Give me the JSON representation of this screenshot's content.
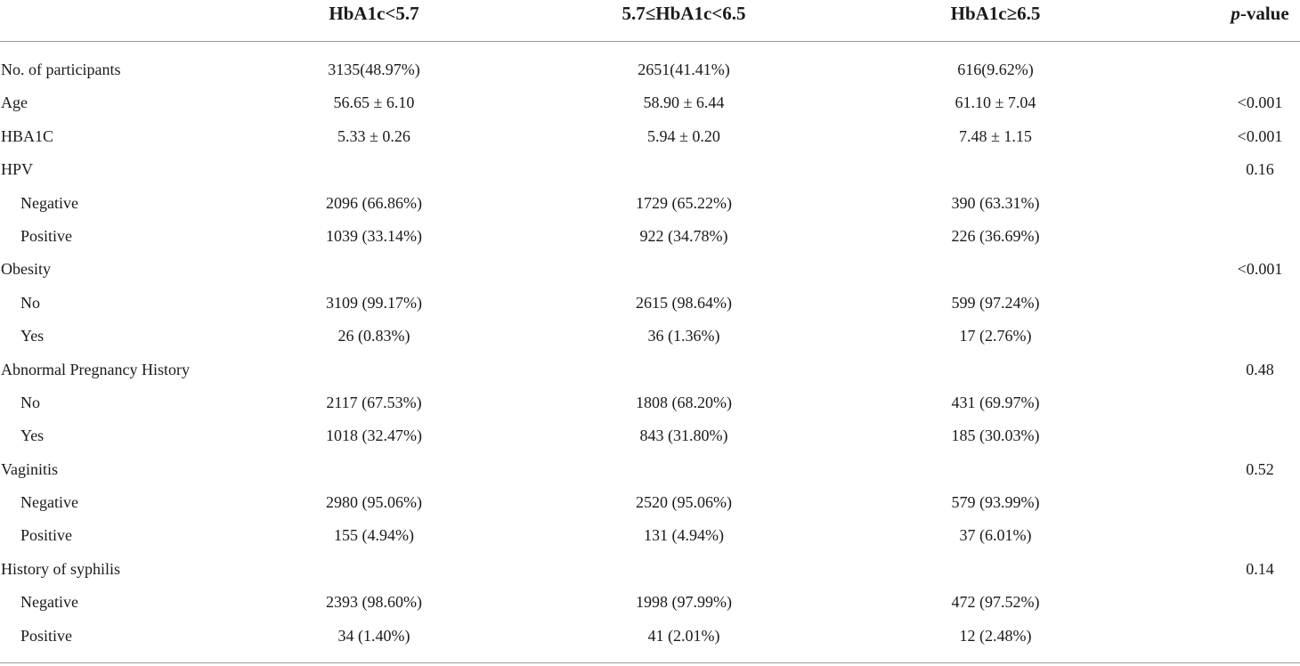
{
  "header": {
    "col_a": "HbA1c<5.7",
    "col_b": "5.7≤HbA1c<6.5",
    "col_c": "HbA1c≥6.5",
    "col_p_italic": "p",
    "col_p_rest": "-value"
  },
  "rows": [
    {
      "label": "No. of participants",
      "indent": false,
      "a": "3135(48.97%)",
      "b": "2651(41.41%)",
      "c": "616(9.62%)",
      "p": ""
    },
    {
      "label": "Age",
      "indent": false,
      "a": "56.65 ± 6.10",
      "b": "58.90 ± 6.44",
      "c": "61.10 ± 7.04",
      "p": "<0.001"
    },
    {
      "label": "HBA1C",
      "indent": false,
      "a": "5.33 ± 0.26",
      "b": "5.94 ± 0.20",
      "c": "7.48 ± 1.15",
      "p": "<0.001"
    },
    {
      "label": "HPV",
      "indent": false,
      "a": "",
      "b": "",
      "c": "",
      "p": "0.16"
    },
    {
      "label": "Negative",
      "indent": true,
      "a": "2096 (66.86%)",
      "b": "1729 (65.22%)",
      "c": "390 (63.31%)",
      "p": ""
    },
    {
      "label": "Positive",
      "indent": true,
      "a": "1039 (33.14%)",
      "b": "922 (34.78%)",
      "c": "226 (36.69%)",
      "p": ""
    },
    {
      "label": "Obesity",
      "indent": false,
      "a": "",
      "b": "",
      "c": "",
      "p": "<0.001"
    },
    {
      "label": "No",
      "indent": true,
      "a": "3109 (99.17%)",
      "b": "2615 (98.64%)",
      "c": "599 (97.24%)",
      "p": ""
    },
    {
      "label": "Yes",
      "indent": true,
      "a": "26 (0.83%)",
      "b": "36 (1.36%)",
      "c": "17 (2.76%)",
      "p": ""
    },
    {
      "label": "Abnormal Pregnancy History",
      "indent": false,
      "a": "",
      "b": "",
      "c": "",
      "p": "0.48"
    },
    {
      "label": "No",
      "indent": true,
      "a": "2117 (67.53%)",
      "b": "1808 (68.20%)",
      "c": "431 (69.97%)",
      "p": ""
    },
    {
      "label": "Yes",
      "indent": true,
      "a": "1018 (32.47%)",
      "b": "843 (31.80%)",
      "c": "185 (30.03%)",
      "p": ""
    },
    {
      "label": "Vaginitis",
      "indent": false,
      "a": "",
      "b": "",
      "c": "",
      "p": "0.52"
    },
    {
      "label": "Negative",
      "indent": true,
      "a": "2980 (95.06%)",
      "b": "2520 (95.06%)",
      "c": "579 (93.99%)",
      "p": ""
    },
    {
      "label": "Positive",
      "indent": true,
      "a": "155 (4.94%)",
      "b": "131 (4.94%)",
      "c": "37 (6.01%)",
      "p": ""
    },
    {
      "label": "History of syphilis",
      "indent": false,
      "a": "",
      "b": "",
      "c": "",
      "p": "0.14"
    },
    {
      "label": "Negative",
      "indent": true,
      "a": "2393 (98.60%)",
      "b": "1998 (97.99%)",
      "c": "472 (97.52%)",
      "p": ""
    },
    {
      "label": "Positive",
      "indent": true,
      "a": "34 (1.40%)",
      "b": "41 (2.01%)",
      "c": "12 (2.48%)",
      "p": ""
    }
  ]
}
